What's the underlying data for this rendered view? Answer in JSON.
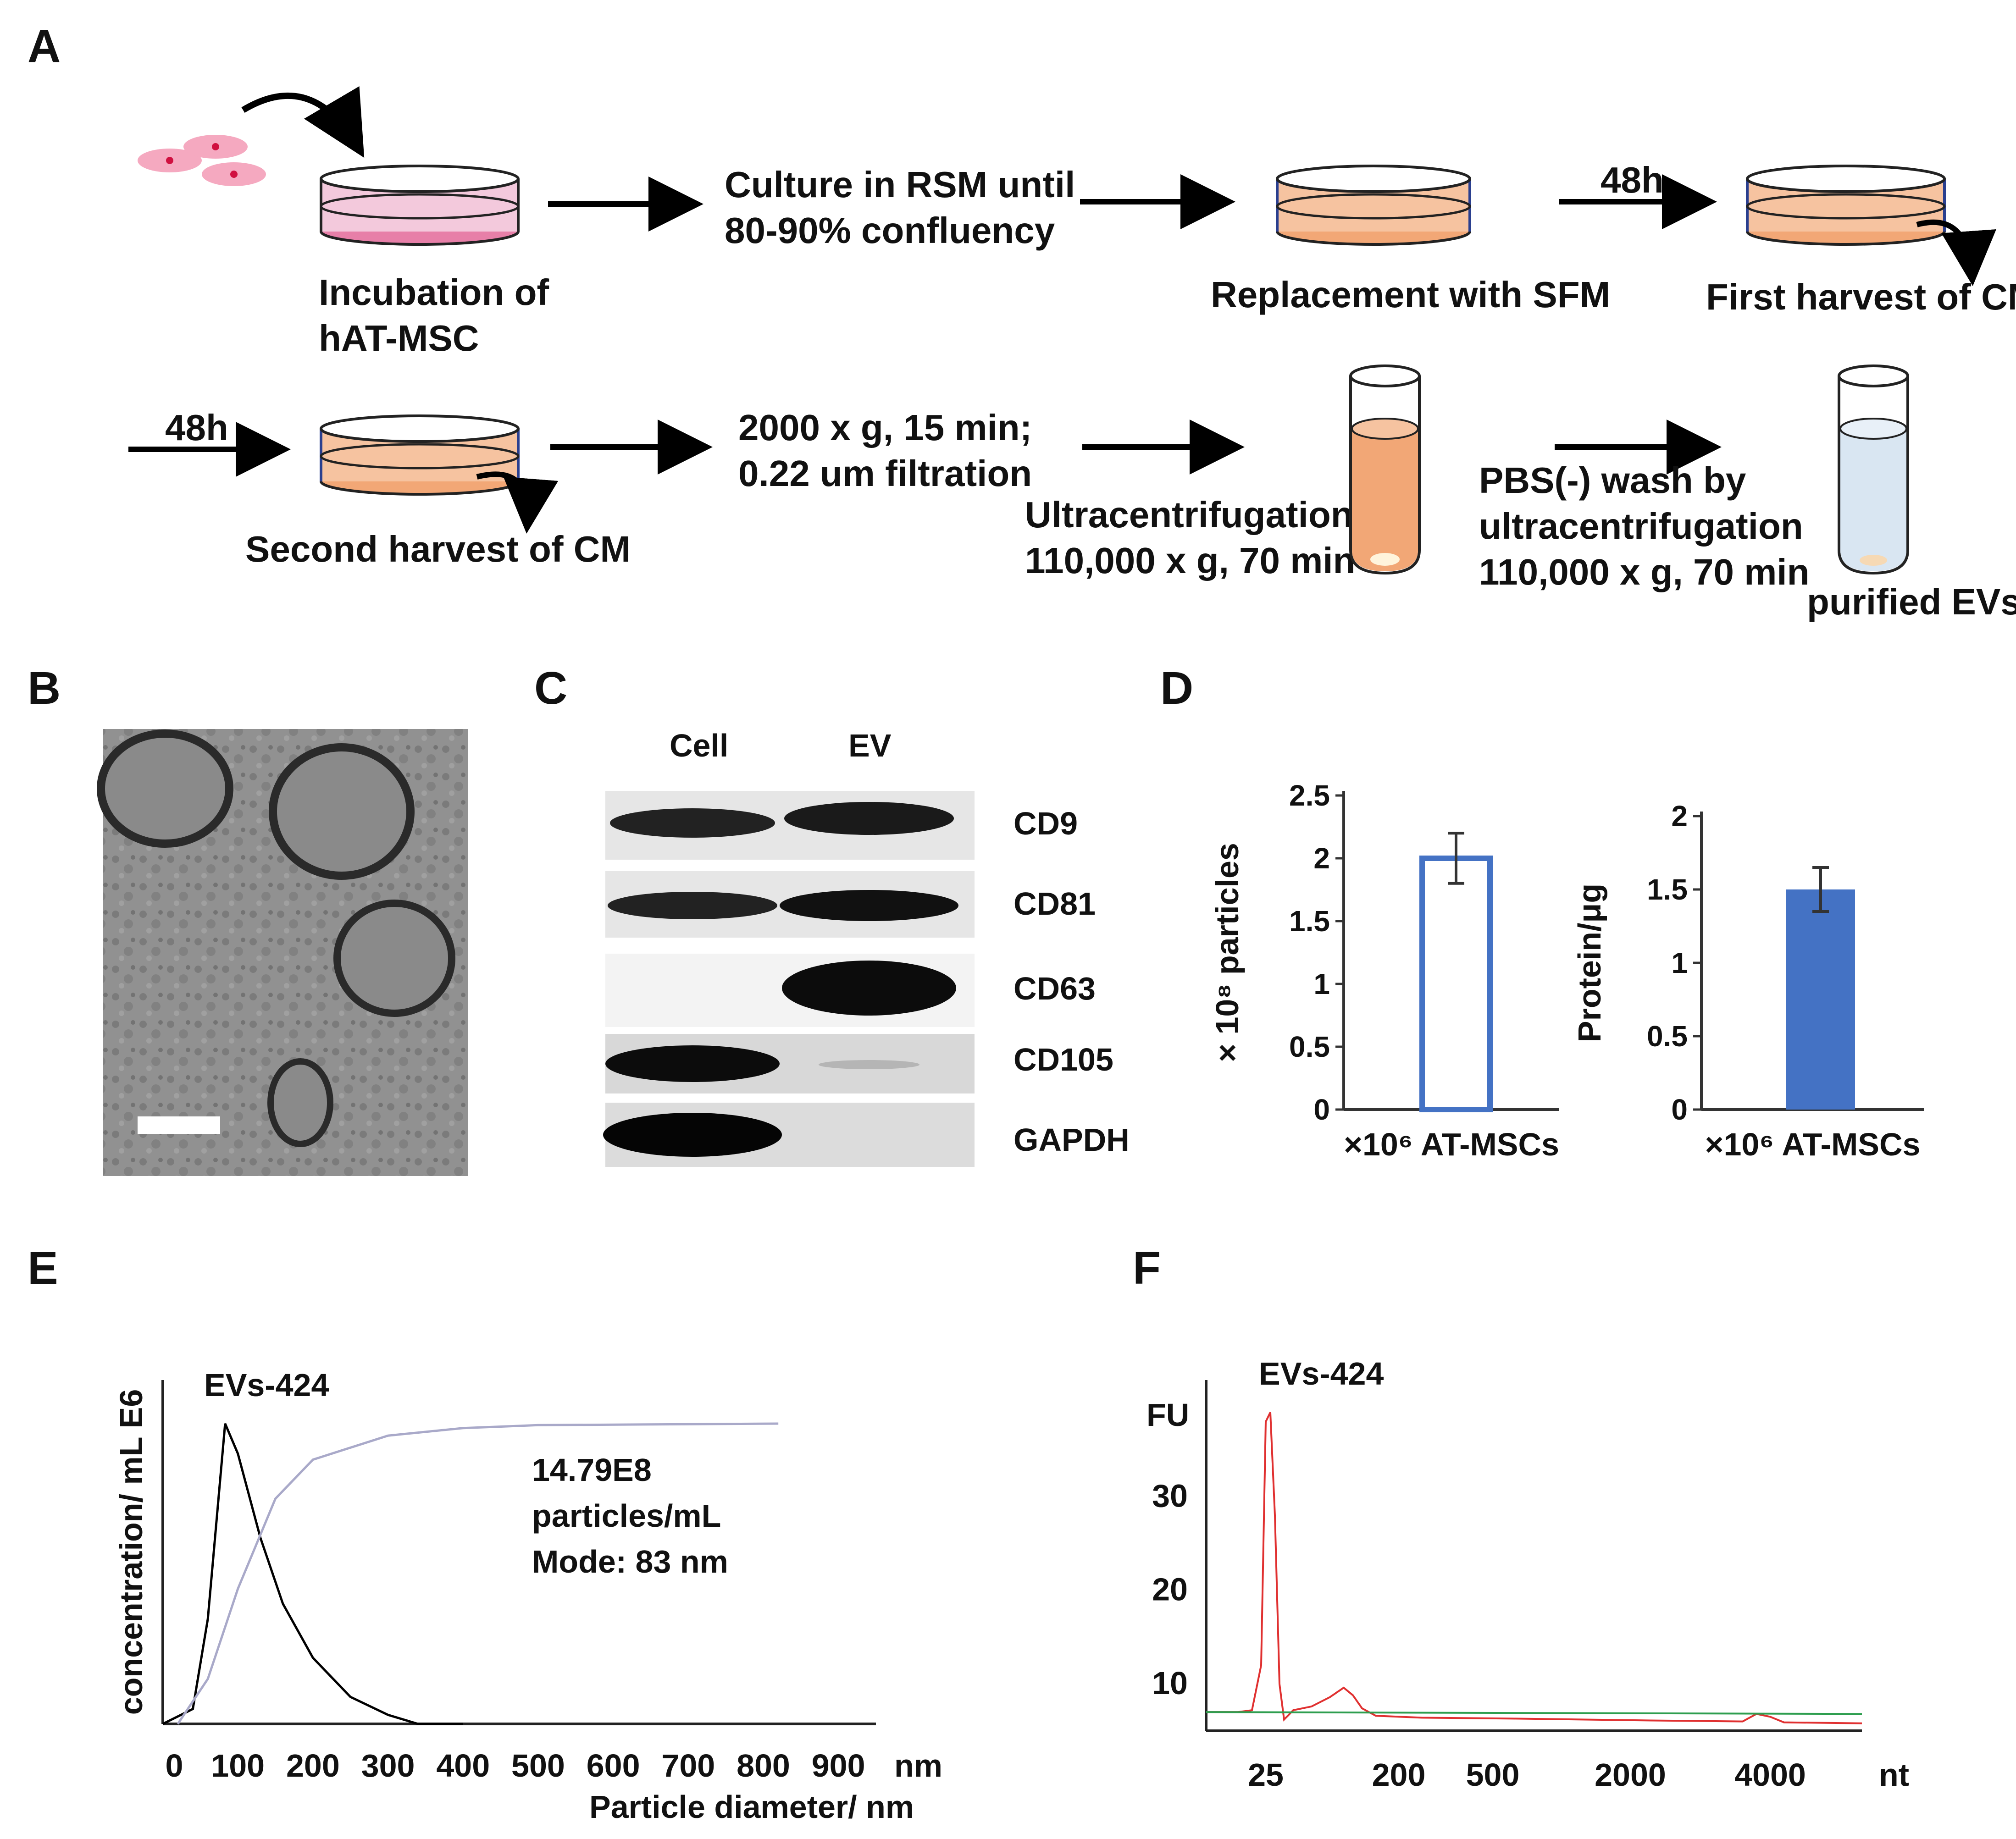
{
  "panels": {
    "A": "A",
    "B": "B",
    "C": "C",
    "D": "D",
    "E": "E",
    "F": "F"
  },
  "workflow": {
    "step1": [
      "Incubation of",
      "hAT-MSC"
    ],
    "step2": [
      "Culture in RSM until",
      "80-90% confluency"
    ],
    "step3": "Replacement with SFM",
    "time1": "48h",
    "step4": "First harvest of CM",
    "time2": "48h",
    "step5": "Second harvest of CM",
    "step6": [
      "2000 x g, 15 min;",
      "0.22 um filtration"
    ],
    "step7": [
      "Ultracentrifugation",
      "110,000 x g, 70 min"
    ],
    "step8": [
      "PBS(-) wash by",
      "ultracentrifugation",
      "110,000 x g, 70 min"
    ],
    "step9": "purified EVs"
  },
  "western": {
    "columns": [
      "Cell",
      "EV"
    ],
    "bands": [
      "CD9",
      "CD81",
      "CD63",
      "CD105",
      "GAPDH"
    ]
  },
  "colors": {
    "bar": "#4472c4",
    "nta_size": "#000000",
    "nta_cumulative": "#a9a9c9",
    "fu_trace": "#e03030",
    "fu_baseline": "#2e9e4f",
    "medium_pink": "#e77fa8",
    "medium_orange": "#f2a776",
    "evs_tube": "#d9e6f2"
  },
  "chart_data": [
    {
      "type": "bar",
      "panel": "D",
      "ylabel": "× 10⁸ particles",
      "xlabel": "×10⁶ AT-MSCs",
      "ylim": [
        0,
        2.5
      ],
      "yticks": [
        "0",
        "0.5",
        "1",
        "1.5",
        "2",
        "2.5"
      ],
      "values": [
        2.0
      ],
      "error": [
        0.2
      ],
      "fill": "none"
    },
    {
      "type": "bar",
      "panel": "D",
      "ylabel": "Protein/μg",
      "xlabel": "×10⁶ AT-MSCs",
      "ylim": [
        0,
        2
      ],
      "yticks": [
        "0",
        "0.5",
        "1",
        "1.5",
        "2"
      ],
      "values": [
        1.5
      ],
      "error": [
        0.15
      ],
      "fill": "solid"
    },
    {
      "type": "line",
      "panel": "E",
      "title": "EVs-424",
      "ylabel": "concentration/ mL E6",
      "xlabel": "Particle diameter/ nm",
      "xunit": "nm",
      "xlim": [
        0,
        950
      ],
      "xticks": [
        "0",
        "100",
        "200",
        "300",
        "400",
        "500",
        "600",
        "700",
        "800",
        "900"
      ],
      "annotation": [
        "14.79E8",
        "particles/mL",
        "Mode: 83 nm"
      ],
      "series": [
        {
          "values": [
            [
              0,
              0
            ],
            [
              40,
              0.05
            ],
            [
              60,
              0.35
            ],
            [
              83,
              1
            ],
            [
              100,
              0.9
            ],
            [
              130,
              0.62
            ],
            [
              160,
              0.4
            ],
            [
              200,
              0.22
            ],
            [
              250,
              0.09
            ],
            [
              300,
              0.03
            ],
            [
              340,
              0
            ],
            [
              400,
              0
            ]
          ]
        },
        {
          "values": [
            [
              20,
              0
            ],
            [
              60,
              0.15
            ],
            [
              100,
              0.45
            ],
            [
              150,
              0.75
            ],
            [
              200,
              0.88
            ],
            [
              300,
              0.96
            ],
            [
              400,
              0.985
            ],
            [
              500,
              0.995
            ],
            [
              820,
              1
            ]
          ]
        }
      ]
    },
    {
      "type": "line",
      "panel": "F",
      "title": "EVs-424",
      "ylabel": "FU",
      "xunit": "nt",
      "xticks": [
        "25",
        "200",
        "500",
        "2000",
        "4000"
      ],
      "yticks": [
        "10",
        "20",
        "30"
      ],
      "ylim": [
        5,
        40
      ]
    }
  ]
}
